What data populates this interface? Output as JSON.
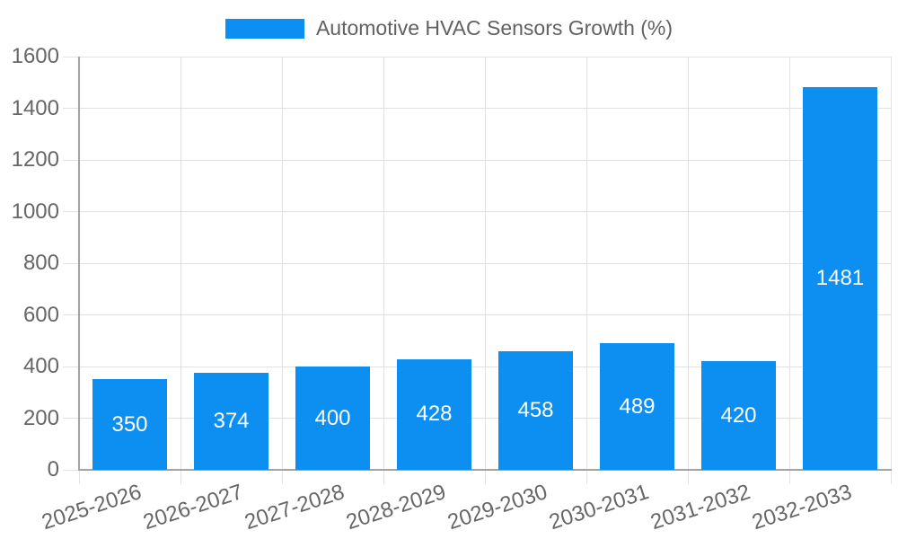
{
  "chart_data": {
    "type": "bar",
    "title": "Automotive HVAC Sensors Growth (%)",
    "categories": [
      "2025-2026",
      "2026-2027",
      "2027-2028",
      "2028-2029",
      "2029-2030",
      "2030-2031",
      "2031-2032",
      "2032-2033"
    ],
    "values": [
      350,
      374,
      400,
      428,
      458,
      489,
      420,
      1481
    ],
    "bar_value_labels": [
      "350",
      "374",
      "400",
      "428",
      "458",
      "489",
      "420",
      "1481"
    ],
    "xlabel": "",
    "ylabel": "",
    "ylim": [
      0,
      1600
    ],
    "ytick_step": 200,
    "yticks": [
      "0",
      "200",
      "400",
      "600",
      "800",
      "1000",
      "1200",
      "1400",
      "1600"
    ],
    "grid": "on",
    "legend_position": "top-center",
    "x_label_rotation_deg": -18,
    "colors": {
      "bar": "#0d8ff2",
      "bar_value_text": "#ffffff",
      "gridline": "#e2e2e2",
      "axis_line": "#a3a3a3",
      "tick_text": "#666666",
      "legend_text": "#616161",
      "background": "#ffffff"
    }
  }
}
